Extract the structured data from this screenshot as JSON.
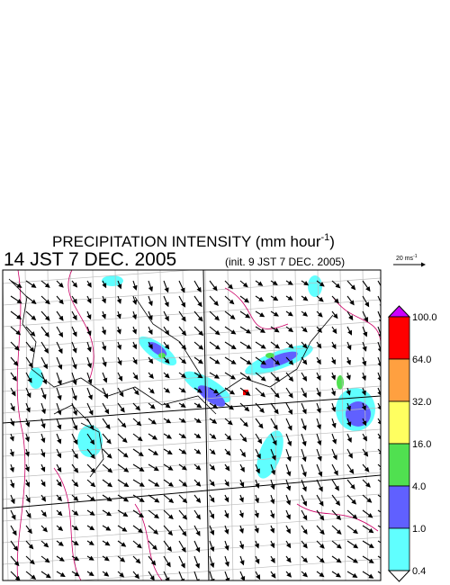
{
  "header": {
    "title": "PRECIPITATION INTENSITY (mm hour",
    "title_exponent": "-1",
    "title_end": ")",
    "valid_time": "14 JST 7 DEC. 2005",
    "init_time": "(init. 9 JST 7 DEC. 2005)"
  },
  "scale": {
    "label": "20 ms",
    "exponent": "-1"
  },
  "colorbar": {
    "labels": [
      "100.0",
      "64.0",
      "32.0",
      "16.0",
      "4.0",
      "1.0",
      "0.4"
    ],
    "colors": [
      "#ff0000",
      "#ffa040",
      "#ffff60",
      "#50e050",
      "#6060ff",
      "#60ffff"
    ],
    "over_color": "#cc00ff",
    "under_color": "#ffffff"
  }
}
